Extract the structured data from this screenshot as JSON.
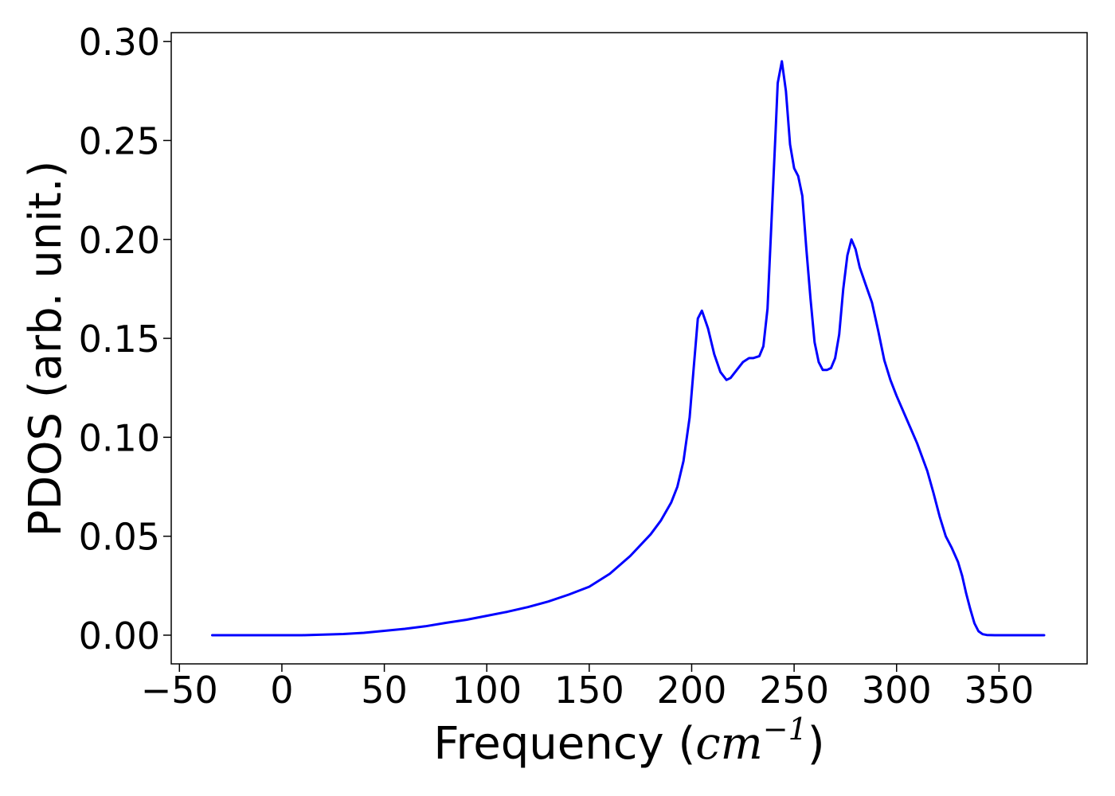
{
  "chart_data": {
    "type": "line",
    "title": "",
    "xlabel_prefix": "Frequency (",
    "xlabel_math": "cm",
    "xlabel_sup": "−1",
    "xlabel_suffix": ")",
    "ylabel": "PDOS (arb. unit.)",
    "xlim": [
      -54,
      393
    ],
    "ylim": [
      -0.0145,
      0.3045
    ],
    "x_ticks": [
      -50,
      0,
      50,
      100,
      150,
      200,
      250,
      300,
      350
    ],
    "x_tick_labels": [
      "−50",
      "0",
      "50",
      "100",
      "150",
      "200",
      "250",
      "300",
      "350"
    ],
    "y_ticks": [
      0.0,
      0.05,
      0.1,
      0.15,
      0.2,
      0.25,
      0.3
    ],
    "y_tick_labels": [
      "0.00",
      "0.05",
      "0.10",
      "0.15",
      "0.20",
      "0.25",
      "0.30"
    ],
    "grid": false,
    "legend": "none",
    "series": [
      {
        "color": "#0000ff",
        "x": [
          -34,
          0,
          10,
          30,
          40,
          50,
          60,
          70,
          80,
          90,
          100,
          110,
          120,
          130,
          140,
          150,
          160,
          170,
          180,
          185,
          190,
          193,
          196,
          199,
          201,
          203,
          205,
          208,
          211,
          214,
          217,
          219,
          222,
          225,
          228,
          230,
          233,
          235,
          237,
          239,
          241,
          242,
          244,
          246,
          248,
          250,
          252,
          254,
          256,
          258,
          260,
          262,
          264,
          266,
          268,
          270,
          272,
          274,
          276,
          278,
          280,
          282,
          285,
          288,
          291,
          294,
          297,
          300,
          305,
          310,
          315,
          318,
          321,
          324,
          327,
          330,
          332,
          334,
          336,
          338,
          340,
          342,
          344,
          348,
          372
        ],
        "y": [
          0.0,
          0.0,
          0.0,
          0.0006,
          0.0012,
          0.0022,
          0.0032,
          0.0045,
          0.0062,
          0.0078,
          0.0098,
          0.0118,
          0.0142,
          0.017,
          0.0205,
          0.0245,
          0.031,
          0.04,
          0.051,
          0.058,
          0.067,
          0.075,
          0.088,
          0.11,
          0.135,
          0.16,
          0.164,
          0.155,
          0.142,
          0.133,
          0.129,
          0.13,
          0.134,
          0.138,
          0.14,
          0.14,
          0.141,
          0.146,
          0.165,
          0.21,
          0.255,
          0.279,
          0.29,
          0.275,
          0.248,
          0.236,
          0.232,
          0.222,
          0.195,
          0.17,
          0.148,
          0.138,
          0.134,
          0.134,
          0.135,
          0.14,
          0.152,
          0.175,
          0.192,
          0.2,
          0.195,
          0.186,
          0.177,
          0.168,
          0.154,
          0.139,
          0.129,
          0.121,
          0.109,
          0.097,
          0.083,
          0.072,
          0.06,
          0.05,
          0.044,
          0.037,
          0.03,
          0.021,
          0.013,
          0.006,
          0.002,
          0.0005,
          0.0001,
          0.0,
          0.0
        ]
      }
    ]
  }
}
